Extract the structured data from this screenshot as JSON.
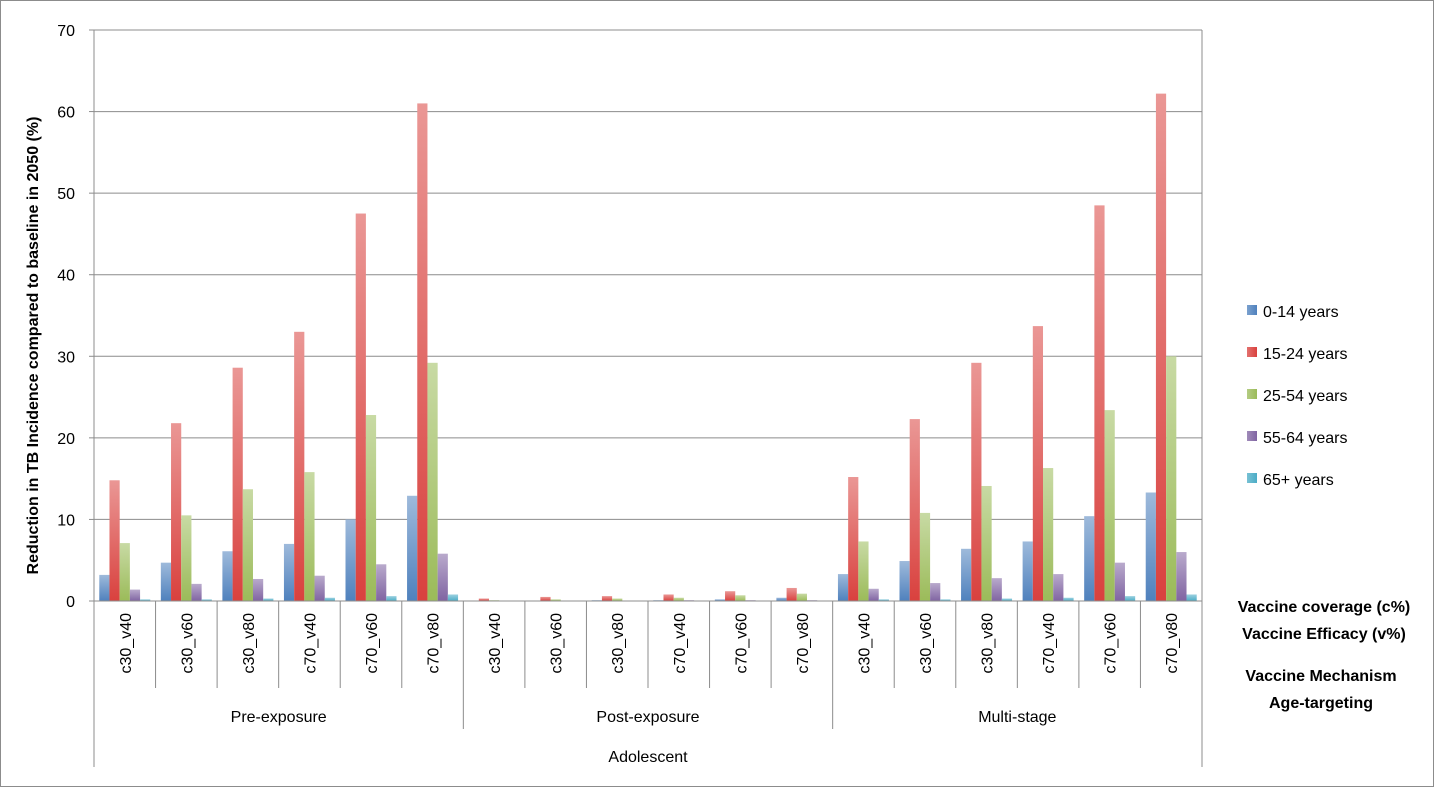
{
  "chart_data": {
    "type": "bar",
    "ylabel": "Reduction in TB Incidence compared to baseline in 2050 (%)",
    "ylim": [
      0,
      70
    ],
    "yticks": [
      0,
      10,
      20,
      30,
      40,
      50,
      60,
      70
    ],
    "grid": true,
    "legend_position": "right",
    "axis_level_labels": [
      "Vaccine coverage (c%)",
      "Vaccine Efficacy (v%)",
      "Vaccine Mechanism",
      "Age-targeting"
    ],
    "categories": [
      "c30_v40",
      "c30_v60",
      "c30_v80",
      "c70_v40",
      "c70_v60",
      "c70_v80",
      "c30_v40",
      "c30_v60",
      "c30_v80",
      "c70_v40",
      "c70_v60",
      "c70_v80",
      "c30_v40",
      "c30_v60",
      "c30_v80",
      "c70_v40",
      "c70_v60",
      "c70_v80"
    ],
    "groups": [
      {
        "label": "Pre-exposure",
        "count": 6
      },
      {
        "label": "Post-exposure",
        "count": 6
      },
      {
        "label": "Multi-stage",
        "count": 6
      }
    ],
    "outer_group": {
      "label": "Adolescent",
      "count": 18
    },
    "series": [
      {
        "name": "0-14 years",
        "color": "#4f81bd",
        "values": [
          3.2,
          4.7,
          6.1,
          7.0,
          10.0,
          12.9,
          0.0,
          0.0,
          0.1,
          0.1,
          0.2,
          0.4,
          3.3,
          4.9,
          6.4,
          7.3,
          10.4,
          13.3
        ]
      },
      {
        "name": "15-24 years",
        "color": "#d9413e",
        "values": [
          14.8,
          21.8,
          28.6,
          33.0,
          47.5,
          61.0,
          0.3,
          0.5,
          0.6,
          0.8,
          1.2,
          1.6,
          15.2,
          22.3,
          29.2,
          33.7,
          48.5,
          62.2
        ]
      },
      {
        "name": "25-54 years",
        "color": "#9bbb59",
        "values": [
          7.1,
          10.5,
          13.7,
          15.8,
          22.8,
          29.2,
          0.1,
          0.2,
          0.3,
          0.4,
          0.7,
          0.9,
          7.3,
          10.8,
          14.1,
          16.3,
          23.4,
          30.0
        ]
      },
      {
        "name": "55-64 years",
        "color": "#8064a2",
        "values": [
          1.4,
          2.1,
          2.7,
          3.1,
          4.5,
          5.8,
          0.0,
          0.0,
          0.0,
          0.1,
          0.1,
          0.1,
          1.5,
          2.2,
          2.8,
          3.3,
          4.7,
          6.0
        ]
      },
      {
        "name": "65+ years",
        "color": "#4bacc6",
        "values": [
          0.2,
          0.2,
          0.3,
          0.4,
          0.6,
          0.8,
          0.0,
          0.0,
          0.0,
          0.0,
          0.0,
          0.0,
          0.2,
          0.2,
          0.3,
          0.4,
          0.6,
          0.8
        ]
      }
    ]
  }
}
